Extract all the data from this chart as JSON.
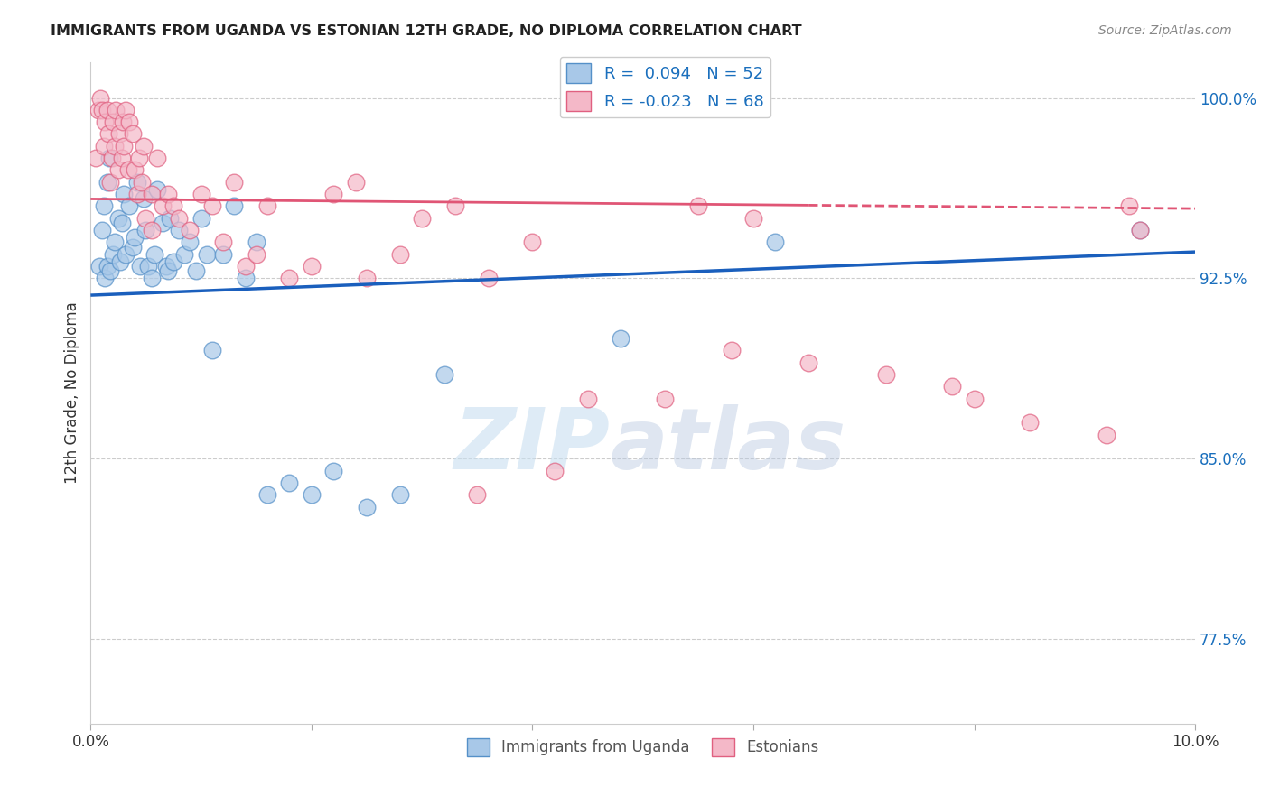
{
  "title": "IMMIGRANTS FROM UGANDA VS ESTONIAN 12TH GRADE, NO DIPLOMA CORRELATION CHART",
  "source": "Source: ZipAtlas.com",
  "ylabel": "12th Grade, No Diploma",
  "xlim": [
    0.0,
    10.0
  ],
  "ylim": [
    74.0,
    101.5
  ],
  "yticks": [
    77.5,
    85.0,
    92.5,
    100.0
  ],
  "ytick_labels": [
    "77.5%",
    "85.0%",
    "92.5%",
    "100.0%"
  ],
  "legend_R1": "R =  0.094",
  "legend_N1": "N = 52",
  "legend_R2": "R = -0.023",
  "legend_N2": "N = 68",
  "blue_color": "#a8c8e8",
  "pink_color": "#f4b8c8",
  "blue_edge_color": "#5590c8",
  "pink_edge_color": "#e06080",
  "blue_line_color": "#1a5fbd",
  "pink_line_color": "#e05575",
  "watermark_zip": "ZIP",
  "watermark_atlas": "atlas",
  "blue_scatter_x": [
    0.08,
    0.1,
    0.12,
    0.13,
    0.15,
    0.15,
    0.17,
    0.18,
    0.2,
    0.22,
    0.25,
    0.27,
    0.28,
    0.3,
    0.32,
    0.35,
    0.38,
    0.4,
    0.42,
    0.45,
    0.48,
    0.5,
    0.52,
    0.55,
    0.58,
    0.6,
    0.65,
    0.68,
    0.7,
    0.72,
    0.75,
    0.8,
    0.85,
    0.9,
    0.95,
    1.0,
    1.05,
    1.1,
    1.2,
    1.3,
    1.4,
    1.5,
    1.6,
    1.8,
    2.0,
    2.2,
    2.5,
    2.8,
    3.2,
    4.8,
    6.2,
    9.5
  ],
  "blue_scatter_y": [
    93.0,
    94.5,
    95.5,
    92.5,
    96.5,
    93.0,
    97.5,
    92.8,
    93.5,
    94.0,
    95.0,
    93.2,
    94.8,
    96.0,
    93.5,
    95.5,
    93.8,
    94.2,
    96.5,
    93.0,
    95.8,
    94.5,
    93.0,
    92.5,
    93.5,
    96.2,
    94.8,
    93.0,
    92.8,
    95.0,
    93.2,
    94.5,
    93.5,
    94.0,
    92.8,
    95.0,
    93.5,
    89.5,
    93.5,
    95.5,
    92.5,
    94.0,
    83.5,
    84.0,
    83.5,
    84.5,
    83.0,
    83.5,
    88.5,
    90.0,
    94.0,
    94.5
  ],
  "pink_scatter_x": [
    0.05,
    0.07,
    0.09,
    0.1,
    0.12,
    0.13,
    0.15,
    0.16,
    0.18,
    0.19,
    0.2,
    0.22,
    0.23,
    0.25,
    0.26,
    0.28,
    0.29,
    0.3,
    0.32,
    0.34,
    0.35,
    0.38,
    0.4,
    0.42,
    0.44,
    0.46,
    0.48,
    0.5,
    0.55,
    0.6,
    0.65,
    0.7,
    0.75,
    0.8,
    0.9,
    1.0,
    1.1,
    1.2,
    1.4,
    1.6,
    1.8,
    2.0,
    2.2,
    2.5,
    2.8,
    3.0,
    3.3,
    3.6,
    4.0,
    4.5,
    5.2,
    5.8,
    6.5,
    7.2,
    7.8,
    8.0,
    8.5,
    9.2,
    9.4,
    9.5,
    3.5,
    4.2,
    2.4,
    0.55,
    1.3,
    1.5,
    5.5,
    6.0
  ],
  "pink_scatter_y": [
    97.5,
    99.5,
    100.0,
    99.5,
    98.0,
    99.0,
    99.5,
    98.5,
    96.5,
    97.5,
    99.0,
    98.0,
    99.5,
    97.0,
    98.5,
    97.5,
    99.0,
    98.0,
    99.5,
    97.0,
    99.0,
    98.5,
    97.0,
    96.0,
    97.5,
    96.5,
    98.0,
    95.0,
    96.0,
    97.5,
    95.5,
    96.0,
    95.5,
    95.0,
    94.5,
    96.0,
    95.5,
    94.0,
    93.0,
    95.5,
    92.5,
    93.0,
    96.0,
    92.5,
    93.5,
    95.0,
    95.5,
    92.5,
    94.0,
    87.5,
    87.5,
    89.5,
    89.0,
    88.5,
    88.0,
    87.5,
    86.5,
    86.0,
    95.5,
    94.5,
    83.5,
    84.5,
    96.5,
    94.5,
    96.5,
    93.5,
    95.5,
    95.0
  ]
}
